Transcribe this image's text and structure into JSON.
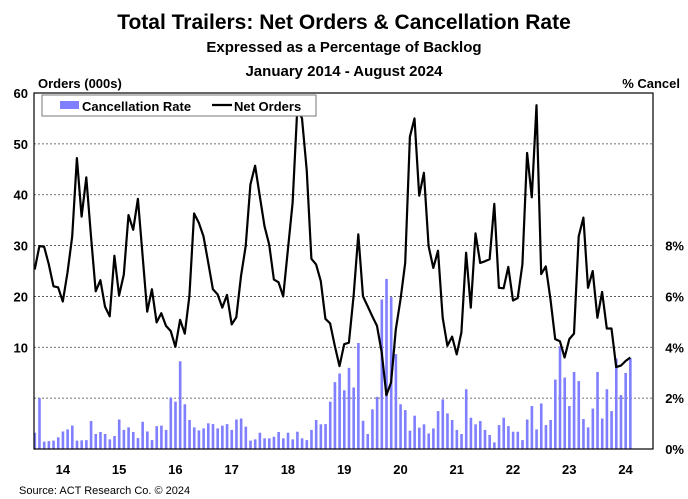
{
  "chart_data": {
    "type": "bar+line",
    "title": "Total Trailers: Net Orders & Cancellation Rate",
    "subtitle": "Expressed as a Percentage of Backlog",
    "date_range": "January 2014 - August 2024",
    "left_axis_label": "Orders (000s)",
    "right_axis_label": "% Cancel",
    "source": "Source: ACT Research Co. © 2024",
    "left_ticks": [
      "10",
      "20",
      "30",
      "40",
      "50",
      "60"
    ],
    "left_tick_values": [
      10,
      20,
      30,
      40,
      50,
      60
    ],
    "right_ticks": [
      "0%",
      "2%",
      "4%",
      "6%",
      "8%"
    ],
    "right_tick_values": [
      0,
      2,
      4,
      6,
      8
    ],
    "x_ticks": [
      "14",
      "15",
      "16",
      "17",
      "18",
      "19",
      "20",
      "21",
      "22",
      "23",
      "24"
    ],
    "left_ylim": [
      -10,
      60
    ],
    "right_ylim": [
      0,
      14
    ],
    "grid": true,
    "legend_placement": "top-left",
    "colors": {
      "bars": "#7f7fff",
      "line": "#000000"
    },
    "series": [
      {
        "name": "Cancellation Rate",
        "type": "bar",
        "axis": "right",
        "values": [
          0.64,
          2.0,
          0.29,
          0.31,
          0.33,
          0.46,
          0.69,
          0.77,
          0.92,
          0.33,
          0.34,
          0.35,
          1.1,
          0.59,
          0.67,
          0.59,
          0.38,
          0.51,
          1.16,
          0.75,
          0.85,
          0.67,
          0.43,
          1.07,
          0.69,
          0.35,
          0.9,
          0.92,
          0.75,
          2.03,
          1.86,
          3.45,
          1.76,
          1.14,
          0.85,
          0.73,
          0.81,
          1.01,
          0.98,
          0.81,
          0.92,
          0.98,
          0.75,
          1.16,
          1.2,
          0.88,
          0.33,
          0.38,
          0.64,
          0.42,
          0.42,
          0.48,
          0.67,
          0.42,
          0.64,
          0.38,
          0.68,
          0.42,
          0.35,
          0.75,
          1.14,
          0.97,
          0.98,
          1.86,
          2.63,
          2.97,
          2.31,
          3.19,
          2.42,
          4.17,
          1.11,
          0.59,
          1.56,
          2.05,
          5.88,
          6.69,
          5.97,
          3.73,
          1.76,
          1.53,
          0.72,
          1.31,
          0.84,
          0.97,
          0.61,
          0.81,
          1.49,
          1.95,
          1.4,
          1.14,
          0.75,
          0.59,
          2.35,
          1.23,
          0.97,
          1.1,
          0.75,
          0.55,
          0.26,
          0.94,
          1.23,
          0.9,
          0.68,
          0.68,
          0.35,
          1.16,
          1.69,
          0.77,
          1.79,
          0.94,
          1.14,
          2.73,
          4.04,
          2.81,
          1.69,
          3.03,
          2.67,
          1.18,
          0.85,
          1.59,
          3.03,
          1.2,
          2.35,
          1.49,
          3.56,
          2.12,
          2.99,
          3.58
        ]
      },
      {
        "name": "Net Orders",
        "type": "line",
        "axis": "left",
        "values": [
          25.3,
          29.9,
          29.8,
          26.3,
          22,
          21.8,
          19,
          24.7,
          31.8,
          47.2,
          35.7,
          43.4,
          31.8,
          21,
          23.2,
          18,
          16.1,
          28,
          20.2,
          24.3,
          36,
          33.1,
          39.2,
          28,
          17,
          21.4,
          14.9,
          16.7,
          14.2,
          13.2,
          10.1,
          15.4,
          12.7,
          20.1,
          36.3,
          34.5,
          31.8,
          26.7,
          21.4,
          20.4,
          17.8,
          20.3,
          14.5,
          15.9,
          24,
          29.9,
          42,
          45.7,
          39.7,
          33.8,
          30.2,
          23.3,
          22.8,
          20,
          29.2,
          38.4,
          57,
          55,
          44.9,
          27.4,
          26.3,
          23,
          15.6,
          14.7,
          10.3,
          6.3,
          10.6,
          10.9,
          20.1,
          32.2,
          20,
          18.1,
          16.1,
          14.2,
          9,
          0.6,
          3.1,
          13.5,
          19.4,
          26.6,
          51.4,
          55,
          39.8,
          44.3,
          29.9,
          25.6,
          29,
          15.8,
          10.3,
          12.1,
          8.6,
          12.9,
          28.6,
          17.8,
          32.4,
          26.6,
          26.9,
          27.3,
          38.2,
          21.7,
          21.6,
          25.8,
          19.2,
          19.7,
          26.3,
          48.2,
          39.5,
          57.6,
          24.4,
          25.9,
          19.4,
          11.6,
          11.2,
          8,
          11.6,
          12.7,
          31.8,
          35.5,
          21.7,
          25,
          15.8,
          20.9,
          13.7,
          13.7,
          6.1,
          6.4,
          7.3,
          8.0
        ]
      }
    ]
  }
}
